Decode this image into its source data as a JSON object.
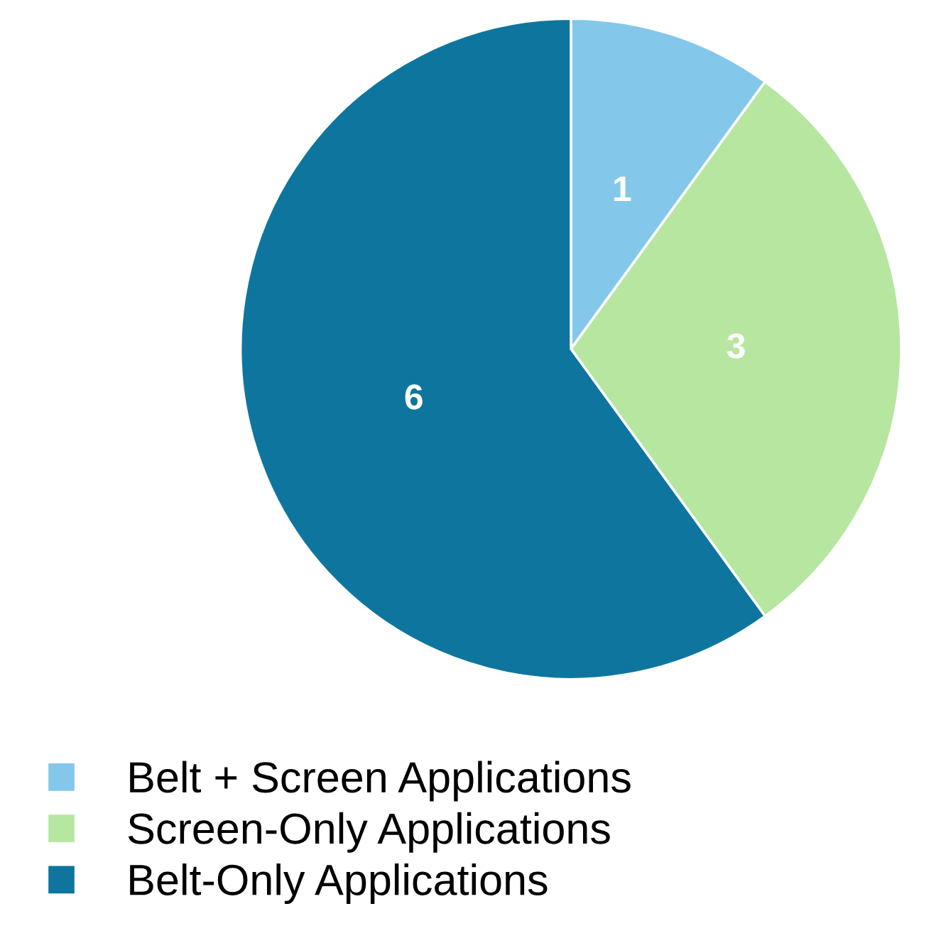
{
  "chart_data": {
    "type": "pie",
    "categories": [
      "Belt + Screen Applications",
      "Screen-Only Applications",
      "Belt-Only Applications"
    ],
    "values": [
      1,
      3,
      6
    ],
    "colors": [
      "#83c8ea",
      "#b7e6a0",
      "#0e769e"
    ],
    "data_labels": true,
    "legend": "bottom left"
  }
}
